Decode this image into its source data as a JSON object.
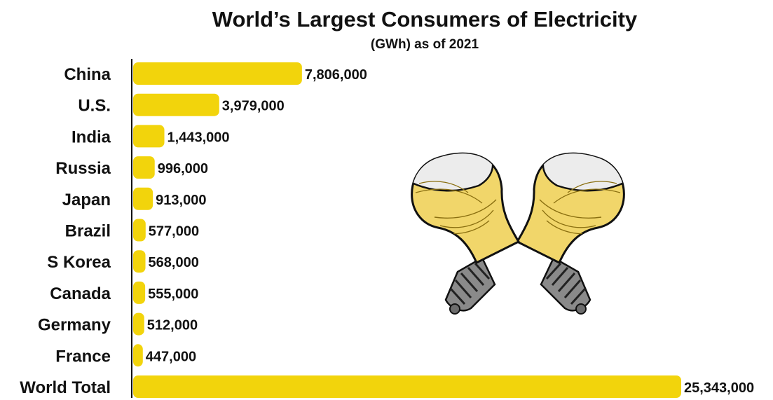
{
  "chart_data": {
    "type": "bar",
    "orientation": "horizontal",
    "title": "World’s Largest Consumers of Electricity",
    "subtitle": "(GWh) as of 2021",
    "categories": [
      "China",
      "U.S.",
      "India",
      "Russia",
      "Japan",
      "Brazil",
      "S Korea",
      "Canada",
      "Germany",
      "France",
      "World Total"
    ],
    "values": [
      7806000,
      3979000,
      1443000,
      996000,
      913000,
      577000,
      568000,
      555000,
      512000,
      447000,
      25343000
    ],
    "value_labels": [
      "7,806,000",
      "3,979,000",
      "1,443,000",
      "996,000",
      "913,000",
      "577,000",
      "568,000",
      "555,000",
      "512,000",
      "447,000",
      "25,343,000"
    ],
    "xlim": [
      0,
      25343000
    ],
    "bar_color": "#f2d40c",
    "grid": false,
    "legend": "none",
    "illustration": "crossed-light-bulbs"
  }
}
